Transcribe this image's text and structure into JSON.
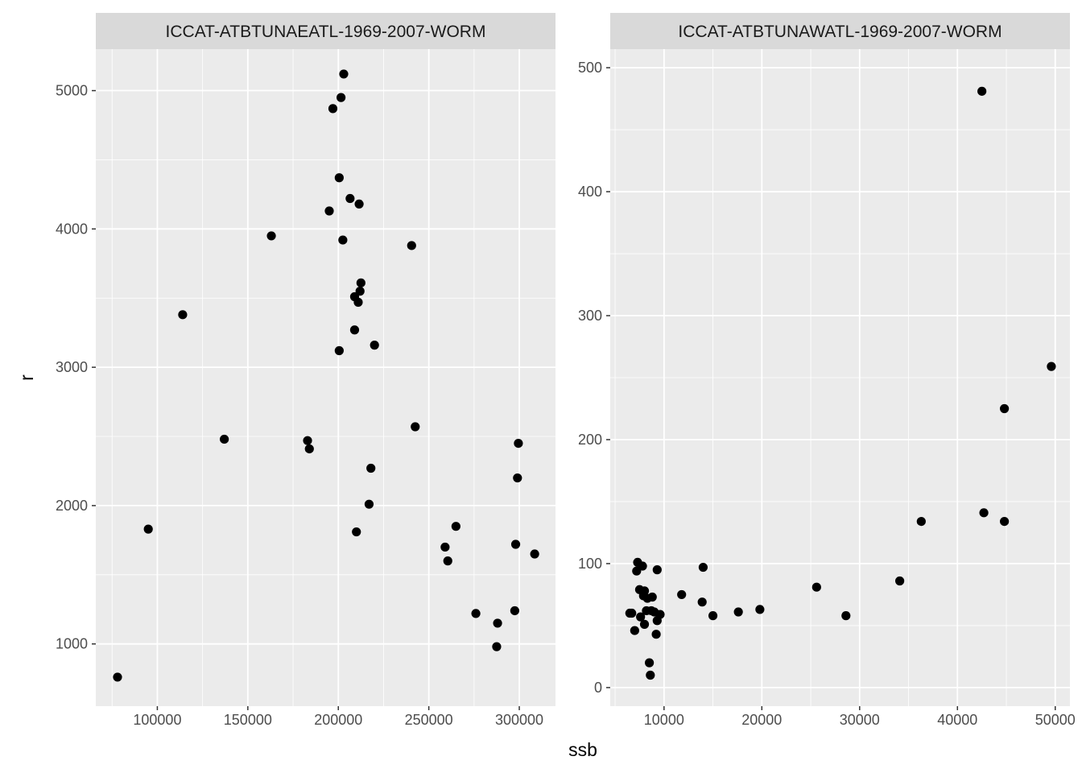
{
  "chart_data": {
    "type": "scatter",
    "xlabel": "ssb",
    "ylabel": "r",
    "grid": true,
    "legend": "none",
    "colors": {
      "panel_background": "#ebebeb",
      "strip_background": "#d9d9d9",
      "grid": "#ffffff",
      "point": "#000000"
    },
    "panels": [
      {
        "title": "ICCAT-ATBTUNAEATL-1969-2007-WORM",
        "xlim": [
          66000,
          320000
        ],
        "ylim": [
          550,
          5300
        ],
        "x_ticks": [
          100000,
          150000,
          200000,
          250000,
          300000
        ],
        "x_tick_labels": [
          "100000",
          "150000",
          "200000",
          "250000",
          "300000"
        ],
        "y_ticks": [
          1000,
          2000,
          3000,
          4000,
          5000
        ],
        "y_tick_labels": [
          "1000",
          "2000",
          "3000",
          "4000",
          "5000"
        ],
        "points": [
          {
            "x": 78000,
            "y": 760
          },
          {
            "x": 95000,
            "y": 1830
          },
          {
            "x": 114000,
            "y": 3380
          },
          {
            "x": 137000,
            "y": 2480
          },
          {
            "x": 163000,
            "y": 3950
          },
          {
            "x": 183000,
            "y": 2470
          },
          {
            "x": 184000,
            "y": 2410
          },
          {
            "x": 195000,
            "y": 4130
          },
          {
            "x": 197000,
            "y": 4870
          },
          {
            "x": 200500,
            "y": 4370
          },
          {
            "x": 200500,
            "y": 3120
          },
          {
            "x": 201500,
            "y": 4950
          },
          {
            "x": 202500,
            "y": 3920
          },
          {
            "x": 203000,
            "y": 5120
          },
          {
            "x": 206500,
            "y": 4220
          },
          {
            "x": 209000,
            "y": 3270
          },
          {
            "x": 209000,
            "y": 3510
          },
          {
            "x": 210000,
            "y": 1810
          },
          {
            "x": 211000,
            "y": 3470
          },
          {
            "x": 211500,
            "y": 4180
          },
          {
            "x": 212000,
            "y": 3550
          },
          {
            "x": 212500,
            "y": 3610
          },
          {
            "x": 217000,
            "y": 2010
          },
          {
            "x": 218000,
            "y": 2270
          },
          {
            "x": 220000,
            "y": 3160
          },
          {
            "x": 240500,
            "y": 3880
          },
          {
            "x": 242500,
            "y": 2570
          },
          {
            "x": 259000,
            "y": 1700
          },
          {
            "x": 260500,
            "y": 1600
          },
          {
            "x": 265000,
            "y": 1850
          },
          {
            "x": 276000,
            "y": 1220
          },
          {
            "x": 287500,
            "y": 980
          },
          {
            "x": 288000,
            "y": 1150
          },
          {
            "x": 297500,
            "y": 1240
          },
          {
            "x": 298000,
            "y": 1720
          },
          {
            "x": 299000,
            "y": 2200
          },
          {
            "x": 299500,
            "y": 2450
          },
          {
            "x": 308500,
            "y": 1650
          }
        ]
      },
      {
        "title": "ICCAT-ATBTUNAWATL-1969-2007-WORM",
        "xlim": [
          4500,
          51500
        ],
        "ylim": [
          -15,
          515
        ],
        "x_ticks": [
          10000,
          20000,
          30000,
          40000,
          50000
        ],
        "x_tick_labels": [
          "10000",
          "20000",
          "30000",
          "40000",
          "50000"
        ],
        "y_ticks": [
          0,
          100,
          200,
          300,
          400,
          500
        ],
        "y_tick_labels": [
          "0",
          "100",
          "200",
          "300",
          "400",
          "500"
        ],
        "points": [
          {
            "x": 6500,
            "y": 60
          },
          {
            "x": 6700,
            "y": 60
          },
          {
            "x": 7000,
            "y": 46
          },
          {
            "x": 7200,
            "y": 94
          },
          {
            "x": 7300,
            "y": 101
          },
          {
            "x": 7500,
            "y": 79
          },
          {
            "x": 7600,
            "y": 57
          },
          {
            "x": 7800,
            "y": 98
          },
          {
            "x": 7900,
            "y": 74
          },
          {
            "x": 8000,
            "y": 78
          },
          {
            "x": 8000,
            "y": 51
          },
          {
            "x": 8200,
            "y": 62
          },
          {
            "x": 8300,
            "y": 72
          },
          {
            "x": 8500,
            "y": 20
          },
          {
            "x": 8600,
            "y": 10
          },
          {
            "x": 8700,
            "y": 62
          },
          {
            "x": 8800,
            "y": 73
          },
          {
            "x": 9000,
            "y": 61
          },
          {
            "x": 9200,
            "y": 43
          },
          {
            "x": 9300,
            "y": 54
          },
          {
            "x": 9300,
            "y": 95
          },
          {
            "x": 9600,
            "y": 59
          },
          {
            "x": 11800,
            "y": 75
          },
          {
            "x": 13900,
            "y": 69
          },
          {
            "x": 14000,
            "y": 97
          },
          {
            "x": 15000,
            "y": 58
          },
          {
            "x": 17600,
            "y": 61
          },
          {
            "x": 19800,
            "y": 63
          },
          {
            "x": 25600,
            "y": 81
          },
          {
            "x": 28600,
            "y": 58
          },
          {
            "x": 34100,
            "y": 86
          },
          {
            "x": 36300,
            "y": 134
          },
          {
            "x": 42500,
            "y": 481
          },
          {
            "x": 42700,
            "y": 141
          },
          {
            "x": 44800,
            "y": 225
          },
          {
            "x": 44800,
            "y": 134
          },
          {
            "x": 49600,
            "y": 259
          }
        ]
      }
    ]
  }
}
